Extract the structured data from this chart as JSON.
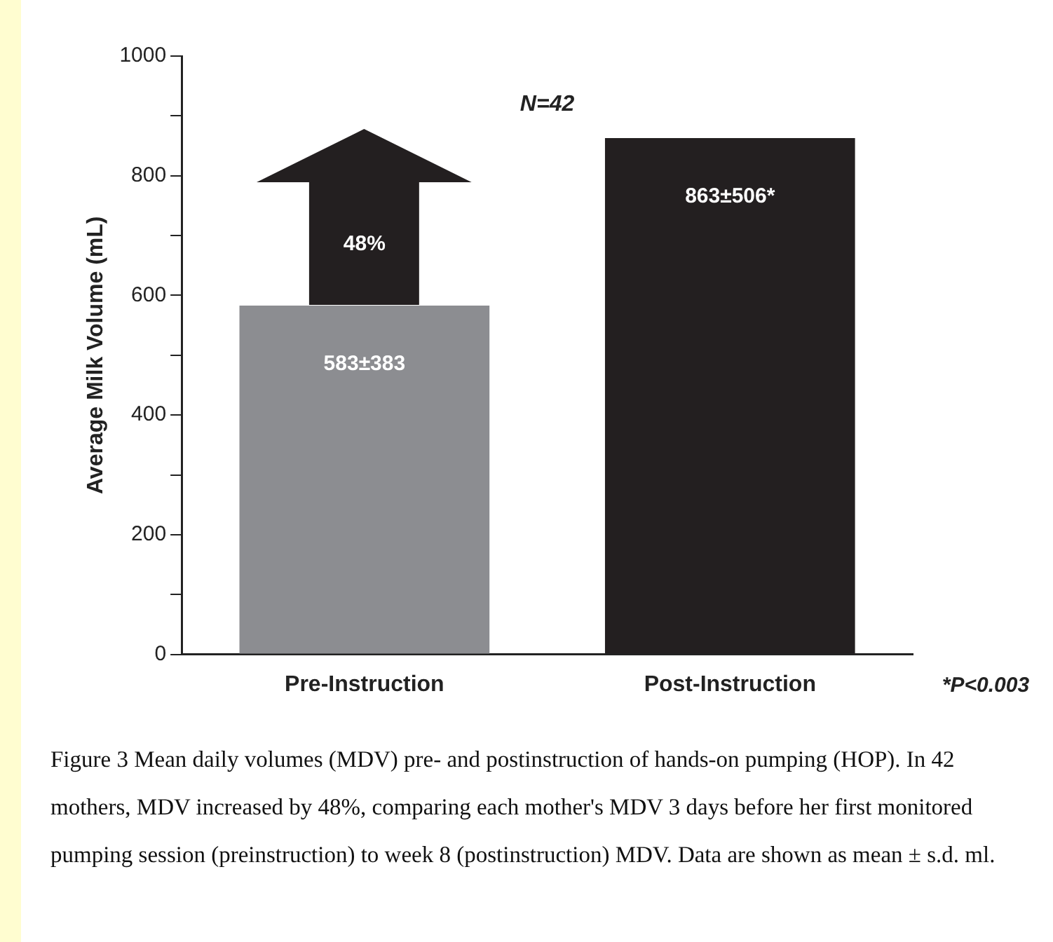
{
  "chart_data": {
    "type": "bar",
    "ylabel": "Average Milk Volume (mL)",
    "categories": [
      "Pre-Instruction",
      "Post-Instruction"
    ],
    "values": [
      583,
      863
    ],
    "colors": [
      "#8c8d91",
      "#231f20"
    ],
    "value_labels": [
      "583±383",
      "863±506*"
    ],
    "ylim": [
      0,
      1000
    ],
    "yticks": [
      0,
      {
        "value": 100,
        "label": null
      },
      200,
      {
        "value": 300,
        "label": null
      },
      400,
      {
        "value": 500,
        "label": null
      },
      600,
      {
        "value": 700,
        "label": null
      },
      800,
      {
        "value": 900,
        "label": null
      },
      1000
    ],
    "grid": false,
    "legend": false,
    "annotations": [
      "N=42",
      "48%",
      "*P<0.003",
      "Figure 3 Mean daily volumes (MDV) pre- and postinstruction of hands-on pumping (HOP). In 42 mothers, MDV increased by 48%, comparing each mother's MDV 3 days before her first monitored pumping session (preinstruction) to week 8 (postinstruction) MDV. Data are shown as mean ± s.d. ml."
    ]
  }
}
